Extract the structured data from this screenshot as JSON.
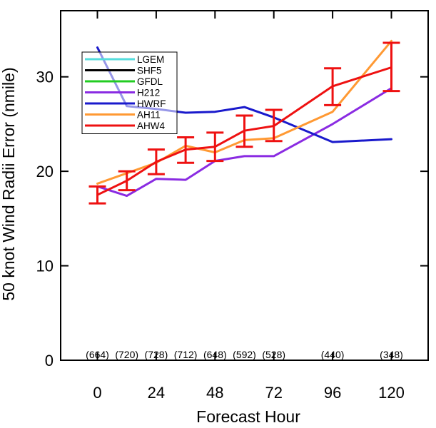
{
  "chart_data": {
    "type": "line",
    "title": "",
    "xlabel": "Forecast Hour",
    "ylabel": "50 knot Wind Radii Error (nmile)",
    "xlim": [
      -15,
      135
    ],
    "ylim": [
      0,
      37
    ],
    "x_ticks": [
      0,
      24,
      48,
      72,
      96,
      120
    ],
    "x_tick_labels": [
      "0",
      "24",
      "48",
      "72",
      "96",
      "120"
    ],
    "y_ticks": [
      0,
      10,
      20,
      30
    ],
    "y_tick_labels": [
      "0",
      "10",
      "20",
      "30"
    ],
    "grid": false,
    "legend_position": "top-left",
    "series": [
      {
        "name": "LGEM",
        "color": "#55dddd",
        "x": [],
        "y": []
      },
      {
        "name": "SHF5",
        "color": "#000000",
        "x": [],
        "y": []
      },
      {
        "name": "GFDL",
        "color": "#22cc22",
        "x": [],
        "y": []
      },
      {
        "name": "H212",
        "color": "#8a2be2",
        "x": [
          0,
          12,
          24,
          36,
          48,
          60,
          72,
          96,
          120
        ],
        "y": [
          18.4,
          17.4,
          19.2,
          19.1,
          21.1,
          21.6,
          21.6,
          25.0,
          28.8
        ]
      },
      {
        "name": "HWRF",
        "color": "#1a1acc",
        "x": [
          0,
          12,
          24,
          36,
          48,
          60,
          72,
          96,
          120
        ],
        "y": [
          33.1,
          26.9,
          26.6,
          26.2,
          26.3,
          26.8,
          25.7,
          23.1,
          23.4
        ]
      },
      {
        "name": "AH11",
        "color": "#ff9933",
        "x": [
          0,
          12,
          24,
          36,
          48,
          60,
          72,
          96,
          120
        ],
        "y": [
          18.7,
          19.8,
          20.9,
          22.7,
          22.0,
          23.3,
          23.5,
          26.3,
          33.8
        ]
      },
      {
        "name": "AHW4",
        "color": "#ee1111",
        "x": [
          0,
          12,
          24,
          36,
          48,
          60,
          72,
          96,
          120
        ],
        "y": [
          17.5,
          19.0,
          21.0,
          22.3,
          22.6,
          24.3,
          24.8,
          29.0,
          31.0
        ]
      }
    ],
    "error_bars": {
      "series": "AHW4",
      "color": "#ee1111",
      "x": [
        0,
        12,
        24,
        36,
        48,
        60,
        72,
        96,
        120
      ],
      "low": [
        16.6,
        18.0,
        19.7,
        20.9,
        21.1,
        22.6,
        23.2,
        27.0,
        28.5
      ],
      "high": [
        18.4,
        20.0,
        22.3,
        23.6,
        24.1,
        25.9,
        26.5,
        30.9,
        33.6
      ]
    },
    "sample_counts": {
      "x": [
        0,
        12,
        24,
        36,
        48,
        60,
        72,
        96,
        120
      ],
      "labels": [
        "(664)",
        "(720)",
        "(728)",
        "(712)",
        "(648)",
        "(592)",
        "(528)",
        "(440)",
        "(348)"
      ]
    }
  }
}
